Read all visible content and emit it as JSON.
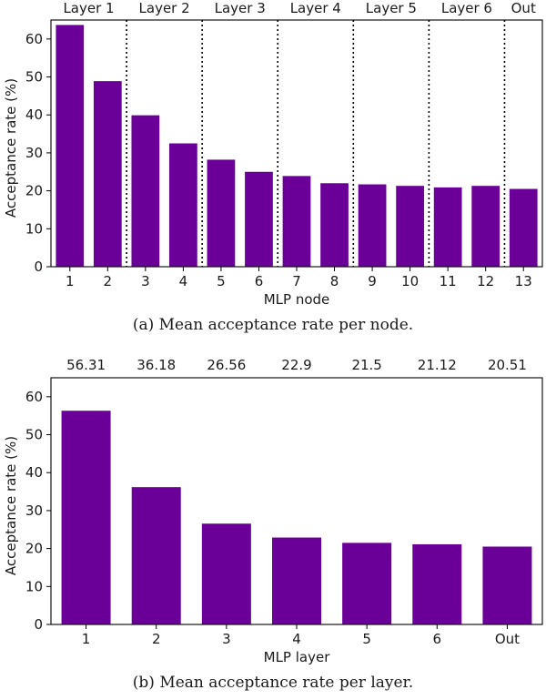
{
  "chart_data": [
    {
      "type": "bar",
      "caption": "(a) Mean acceptance rate per node.",
      "xlabel": "MLP node",
      "ylabel": "Acceptance rate (%)",
      "ylim": [
        0,
        65
      ],
      "yticks": [
        0,
        10,
        20,
        30,
        40,
        50,
        60
      ],
      "categories": [
        "1",
        "2",
        "3",
        "4",
        "5",
        "6",
        "7",
        "8",
        "9",
        "10",
        "11",
        "12",
        "13"
      ],
      "values": [
        63.7,
        48.9,
        39.9,
        32.5,
        28.2,
        25.0,
        23.9,
        22.0,
        21.7,
        21.3,
        20.9,
        21.3,
        20.5
      ],
      "bar_color": "#6a0098",
      "group_labels": [
        {
          "label": "Layer 1",
          "from": 1,
          "to": 2
        },
        {
          "label": "Layer 2",
          "from": 3,
          "to": 4
        },
        {
          "label": "Layer 3",
          "from": 5,
          "to": 6
        },
        {
          "label": "Layer 4",
          "from": 7,
          "to": 8
        },
        {
          "label": "Layer 5",
          "from": 9,
          "to": 10
        },
        {
          "label": "Layer 6",
          "from": 11,
          "to": 12
        },
        {
          "label": "Out",
          "from": 13,
          "to": 13
        }
      ]
    },
    {
      "type": "bar",
      "caption": "(b) Mean acceptance rate per layer.",
      "xlabel": "MLP layer",
      "ylabel": "Acceptance rate (%)",
      "ylim": [
        0,
        65
      ],
      "yticks": [
        0,
        10,
        20,
        30,
        40,
        50,
        60
      ],
      "categories": [
        "1",
        "2",
        "3",
        "4",
        "5",
        "6",
        "Out"
      ],
      "values": [
        56.31,
        36.18,
        26.56,
        22.9,
        21.5,
        21.12,
        20.51
      ],
      "value_labels": [
        "56.31",
        "36.18",
        "26.56",
        "22.9",
        "21.5",
        "21.12",
        "20.51"
      ],
      "bar_color": "#6a0098"
    }
  ]
}
